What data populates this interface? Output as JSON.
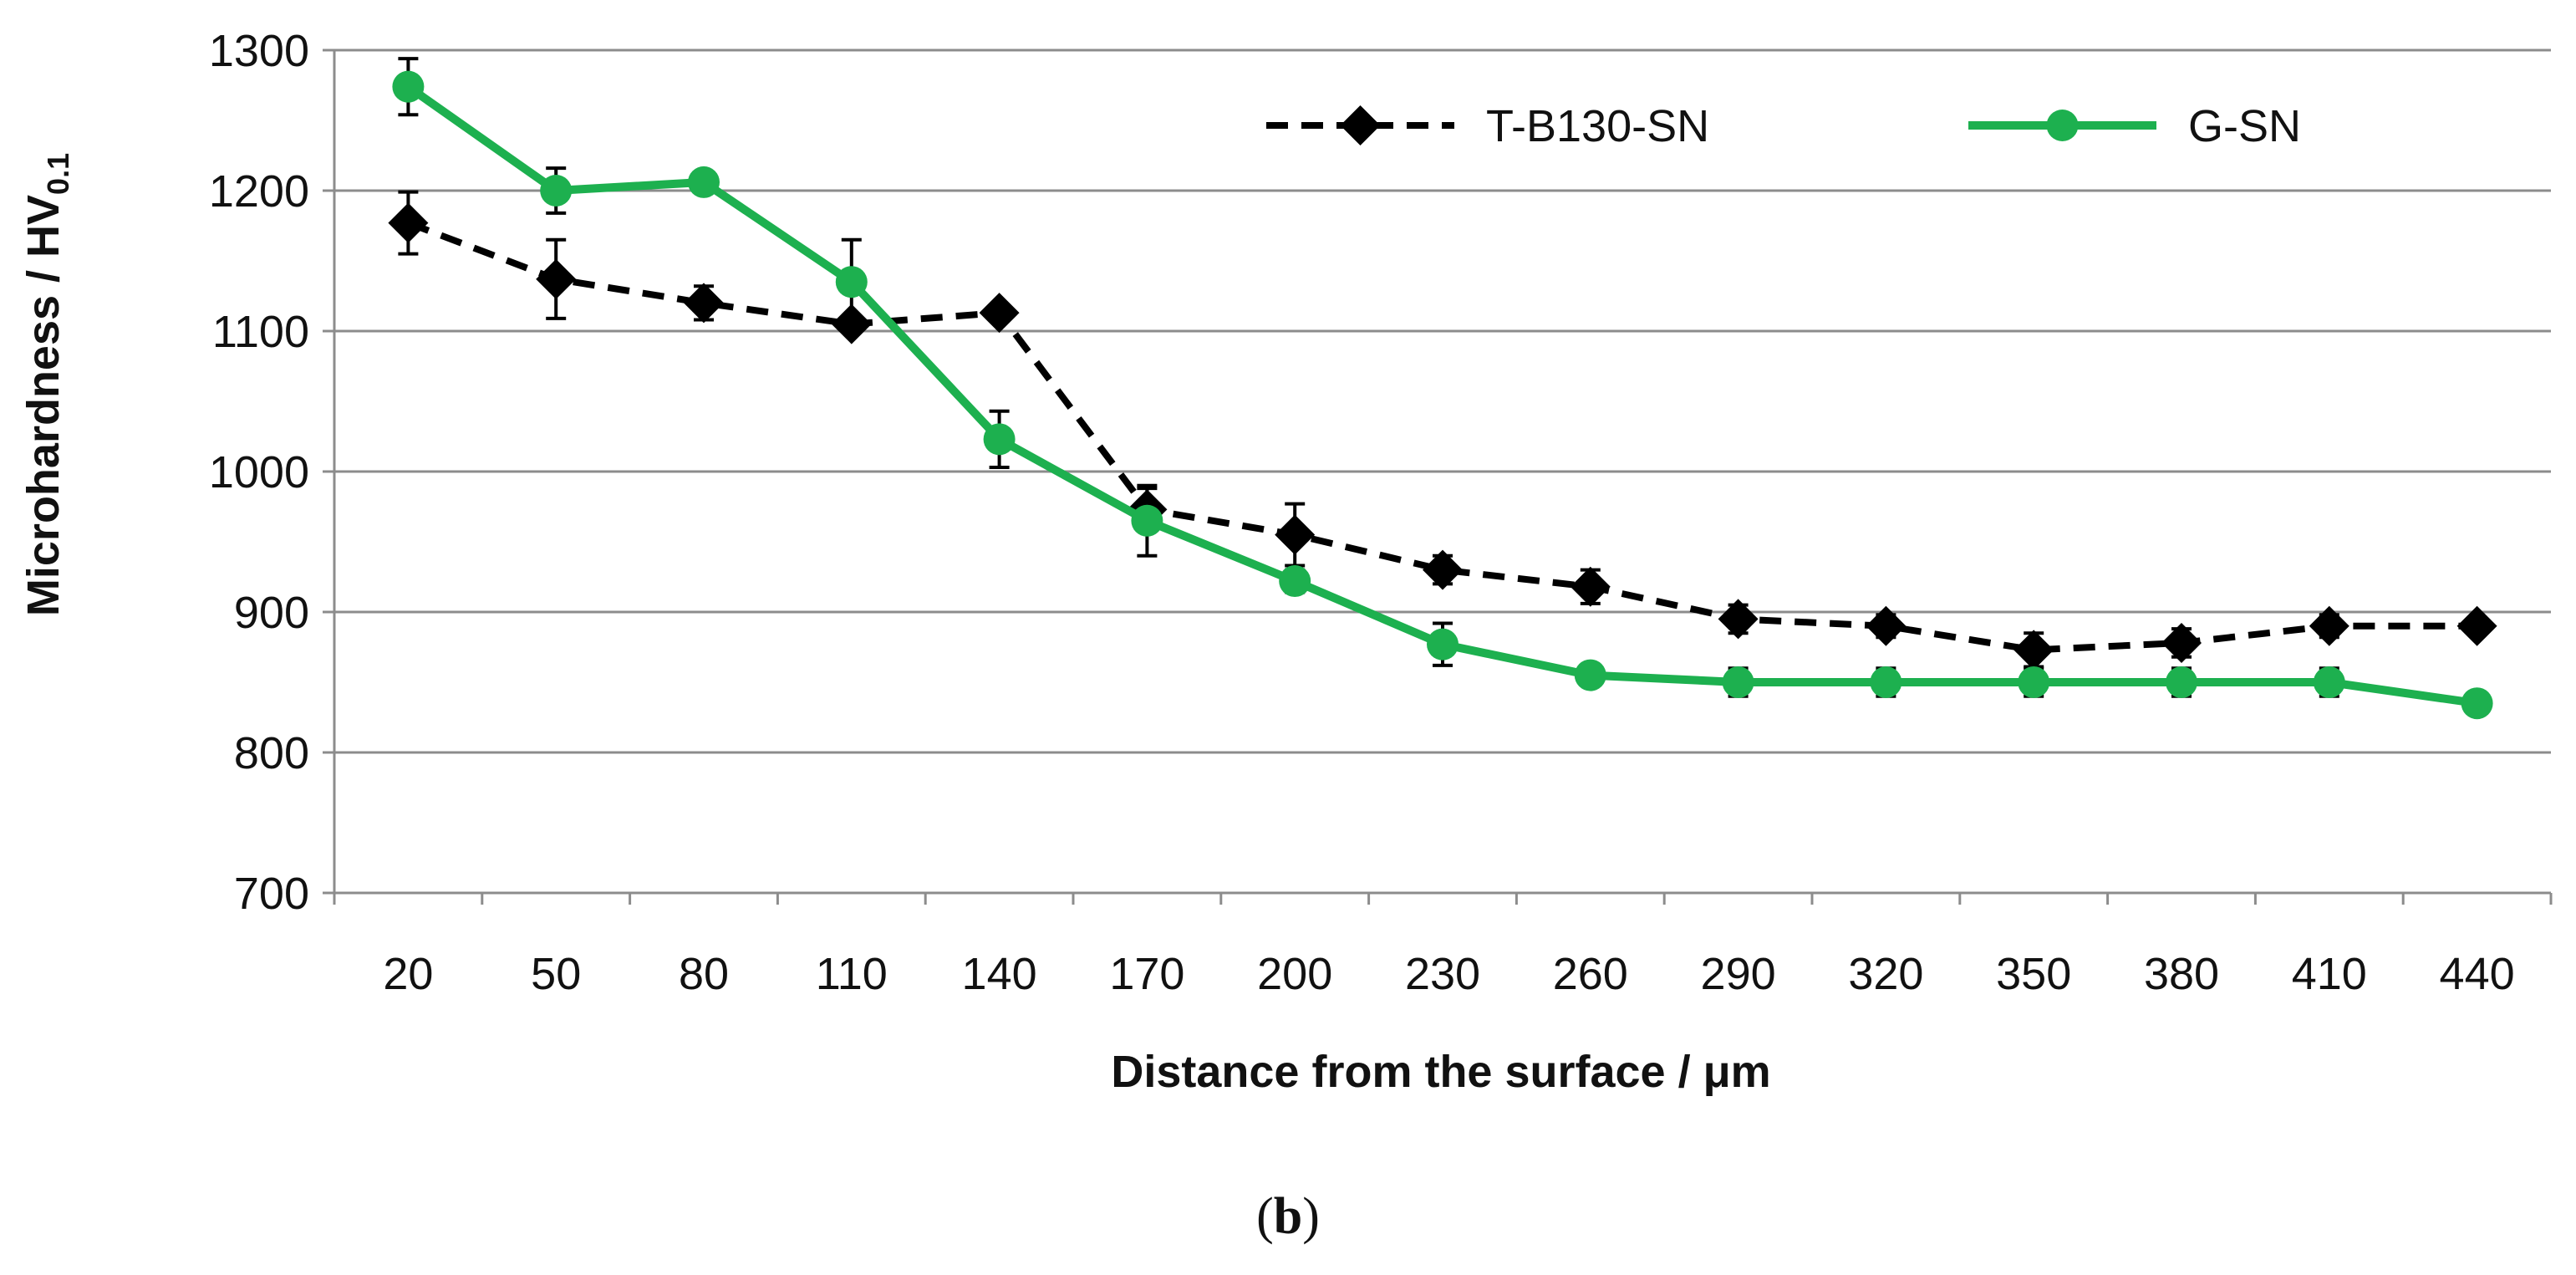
{
  "chart_data": {
    "type": "line",
    "ylabel_main": "Microhardness / HV",
    "ylabel_sub": "0.1",
    "xlabel": "Distance from the surface / μm",
    "ylim": [
      700,
      1300
    ],
    "yticks": [
      700,
      800,
      900,
      1000,
      1100,
      1200,
      1300
    ],
    "grid": true,
    "legend_position": "top-right",
    "categories": [
      "20",
      "50",
      "80",
      "110",
      "140",
      "170",
      "200",
      "230",
      "260",
      "290",
      "320",
      "350",
      "380",
      "410",
      "440"
    ],
    "series": [
      {
        "name": "T-B130-SN",
        "style": "dashed",
        "marker": "diamond",
        "color": "#000000",
        "values": [
          1177,
          1137,
          1120,
          1105,
          1113,
          973,
          955,
          930,
          918,
          895,
          890,
          873,
          878,
          890,
          890
        ],
        "errors": [
          22,
          28,
          12,
          5,
          5,
          15,
          22,
          10,
          12,
          10,
          8,
          12,
          10,
          8,
          5
        ]
      },
      {
        "name": "G-SN",
        "style": "solid",
        "marker": "circle",
        "color": "#1db04f",
        "values": [
          1274,
          1200,
          1206,
          1135,
          1023,
          965,
          922,
          877,
          855,
          850,
          850,
          850,
          850,
          850,
          835
        ],
        "errors": [
          20,
          16,
          5,
          30,
          20,
          25,
          8,
          15,
          5,
          10,
          10,
          10,
          10,
          10,
          5
        ]
      }
    ]
  },
  "caption": {
    "open": "(",
    "letter": "b",
    "close": ")"
  }
}
